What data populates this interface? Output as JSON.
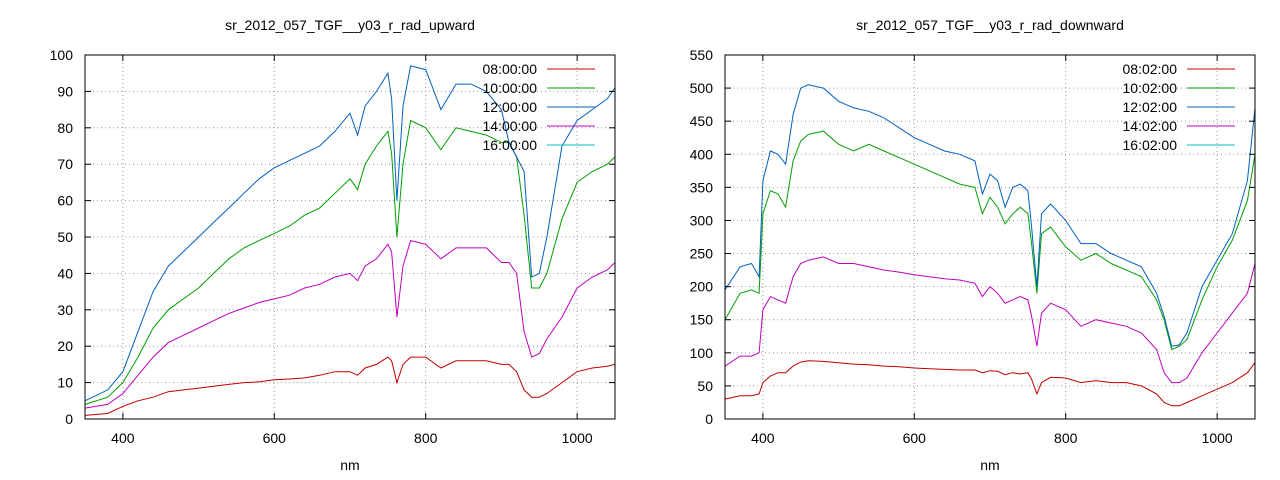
{
  "chart_data": [
    {
      "type": "line",
      "title": "sr_2012_057_TGF__y03_r_rad_upward",
      "xlabel": "nm",
      "ylabel": "",
      "xlim": [
        350,
        1050
      ],
      "ylim": [
        0,
        100
      ],
      "xticks": [
        400,
        600,
        800,
        1000
      ],
      "yticks": [
        0,
        10,
        20,
        30,
        40,
        50,
        60,
        70,
        80,
        90,
        100
      ],
      "grid": true,
      "legend_position": "top-right",
      "series": [
        {
          "name": "08:00:00",
          "color": "#c00000",
          "x": [
            350,
            380,
            400,
            420,
            440,
            460,
            480,
            500,
            520,
            540,
            560,
            580,
            600,
            620,
            640,
            660,
            680,
            700,
            710,
            720,
            735,
            750,
            755,
            762,
            770,
            780,
            800,
            820,
            840,
            860,
            880,
            900,
            910,
            920,
            930,
            940,
            950,
            960,
            980,
            1000,
            1020,
            1040,
            1050
          ],
          "y": [
            1,
            1.5,
            3.5,
            5,
            6,
            7.5,
            8,
            8.5,
            9,
            9.5,
            10,
            10.2,
            10.8,
            11,
            11.3,
            12,
            13,
            13,
            12,
            14,
            15,
            17,
            16,
            10,
            15,
            17,
            17,
            14,
            16,
            16,
            16,
            15,
            15,
            13,
            8,
            6,
            6,
            7,
            10,
            13,
            14,
            14.5,
            15
          ]
        },
        {
          "name": "10:00:00",
          "color": "#00a000",
          "x": [
            350,
            380,
            400,
            420,
            440,
            460,
            480,
            500,
            520,
            540,
            560,
            580,
            600,
            620,
            640,
            660,
            680,
            700,
            710,
            720,
            735,
            750,
            755,
            762,
            770,
            780,
            800,
            820,
            840,
            860,
            880,
            900,
            910,
            920,
            930,
            940,
            950,
            960,
            980,
            1000,
            1020,
            1040,
            1050
          ],
          "y": [
            4,
            6,
            10,
            17,
            25,
            30,
            33,
            36,
            40,
            44,
            47,
            49,
            51,
            53,
            56,
            58,
            62,
            66,
            63,
            70,
            75,
            79,
            73,
            50,
            70,
            82,
            80,
            74,
            80,
            79,
            78,
            76,
            76,
            72,
            56,
            36,
            36,
            40,
            55,
            65,
            68,
            70,
            72
          ]
        },
        {
          "name": "12:00:00",
          "color": "#0060c0",
          "x": [
            350,
            380,
            400,
            420,
            440,
            460,
            480,
            500,
            520,
            540,
            560,
            580,
            600,
            620,
            640,
            660,
            680,
            700,
            710,
            720,
            735,
            750,
            755,
            762,
            770,
            780,
            800,
            820,
            840,
            860,
            880,
            900,
            910,
            920,
            930,
            940,
            950,
            960,
            980,
            1000,
            1020,
            1040,
            1050
          ],
          "y": [
            5,
            8,
            13,
            24,
            35,
            42,
            46,
            50,
            54,
            58,
            62,
            66,
            69,
            71,
            73,
            75,
            79,
            84,
            78,
            86,
            90,
            95,
            88,
            60,
            86,
            97,
            96,
            85,
            92,
            92,
            90,
            85,
            76,
            72,
            68,
            39,
            40,
            50,
            75,
            82,
            85,
            88,
            91
          ]
        },
        {
          "name": "14:00:00",
          "color": "#c000c0",
          "x": [
            350,
            380,
            400,
            420,
            440,
            460,
            480,
            500,
            520,
            540,
            560,
            580,
            600,
            620,
            640,
            660,
            680,
            700,
            710,
            720,
            735,
            750,
            755,
            762,
            770,
            780,
            800,
            820,
            840,
            860,
            880,
            900,
            910,
            920,
            930,
            940,
            950,
            960,
            980,
            1000,
            1020,
            1040,
            1050
          ],
          "y": [
            3,
            4,
            7,
            12,
            17,
            21,
            23,
            25,
            27,
            29,
            30.5,
            32,
            33,
            34,
            36,
            37,
            39,
            40,
            38,
            42,
            44,
            48,
            46,
            28,
            42,
            49,
            48,
            44,
            47,
            47,
            47,
            43,
            43,
            40,
            24,
            17,
            18,
            22,
            28,
            36,
            39,
            41,
            43
          ]
        },
        {
          "name": "16:00:00",
          "color": "#00c0c0",
          "x": [
            350,
            1050
          ],
          "y": [
            0,
            0
          ]
        }
      ]
    },
    {
      "type": "line",
      "title": "sr_2012_057_TGF__y03_r_rad_downward",
      "xlabel": "nm",
      "ylabel": "",
      "xlim": [
        350,
        1050
      ],
      "ylim": [
        0,
        550
      ],
      "xticks": [
        400,
        600,
        800,
        1000
      ],
      "yticks": [
        0,
        50,
        100,
        150,
        200,
        250,
        300,
        350,
        400,
        450,
        500,
        550
      ],
      "grid": true,
      "legend_position": "top-right",
      "series": [
        {
          "name": "08:02:00",
          "color": "#c00000",
          "x": [
            350,
            370,
            385,
            395,
            400,
            410,
            420,
            430,
            440,
            450,
            460,
            480,
            500,
            520,
            540,
            560,
            580,
            600,
            620,
            640,
            660,
            680,
            690,
            700,
            710,
            720,
            730,
            740,
            750,
            755,
            762,
            768,
            780,
            800,
            820,
            840,
            860,
            880,
            900,
            920,
            930,
            940,
            950,
            960,
            980,
            1000,
            1020,
            1040,
            1050
          ],
          "y": [
            30,
            35,
            35,
            38,
            55,
            65,
            70,
            70,
            80,
            86,
            88,
            87,
            85,
            83,
            82,
            80,
            79,
            77,
            76,
            75,
            74,
            74,
            70,
            73,
            72,
            67,
            70,
            68,
            70,
            60,
            38,
            55,
            63,
            62,
            55,
            58,
            55,
            55,
            50,
            38,
            25,
            20,
            20,
            25,
            35,
            45,
            55,
            70,
            85
          ]
        },
        {
          "name": "10:02:00",
          "color": "#00a000",
          "x": [
            350,
            370,
            385,
            395,
            400,
            410,
            420,
            430,
            440,
            450,
            460,
            480,
            500,
            520,
            540,
            560,
            580,
            600,
            620,
            640,
            660,
            680,
            690,
            700,
            710,
            720,
            730,
            740,
            750,
            755,
            762,
            768,
            780,
            800,
            820,
            840,
            860,
            880,
            900,
            920,
            930,
            940,
            950,
            960,
            980,
            1000,
            1020,
            1040,
            1050
          ],
          "y": [
            150,
            190,
            195,
            190,
            310,
            345,
            340,
            320,
            390,
            420,
            430,
            435,
            415,
            405,
            415,
            405,
            395,
            385,
            375,
            365,
            355,
            350,
            310,
            335,
            320,
            295,
            310,
            320,
            310,
            265,
            190,
            280,
            290,
            260,
            240,
            250,
            235,
            225,
            215,
            180,
            150,
            105,
            110,
            120,
            180,
            230,
            270,
            330,
            400
          ]
        },
        {
          "name": "12:02:00",
          "color": "#0060c0",
          "x": [
            350,
            370,
            385,
            395,
            400,
            410,
            420,
            430,
            440,
            450,
            460,
            480,
            500,
            520,
            540,
            560,
            580,
            600,
            620,
            640,
            660,
            680,
            690,
            700,
            710,
            720,
            730,
            740,
            750,
            755,
            762,
            768,
            780,
            800,
            820,
            840,
            860,
            880,
            900,
            920,
            930,
            940,
            950,
            960,
            980,
            1000,
            1020,
            1040,
            1050
          ],
          "y": [
            195,
            230,
            235,
            215,
            360,
            405,
            400,
            385,
            460,
            500,
            505,
            500,
            480,
            470,
            465,
            455,
            440,
            425,
            415,
            405,
            400,
            390,
            340,
            370,
            360,
            320,
            350,
            355,
            345,
            290,
            200,
            310,
            325,
            300,
            265,
            265,
            250,
            240,
            230,
            190,
            155,
            110,
            112,
            130,
            200,
            240,
            280,
            360,
            470
          ]
        },
        {
          "name": "14:02:00",
          "color": "#c000c0",
          "x": [
            350,
            370,
            385,
            395,
            400,
            410,
            420,
            430,
            440,
            450,
            460,
            480,
            500,
            520,
            540,
            560,
            580,
            600,
            620,
            640,
            660,
            680,
            690,
            700,
            710,
            720,
            730,
            740,
            750,
            755,
            762,
            768,
            780,
            800,
            820,
            840,
            860,
            880,
            900,
            920,
            930,
            940,
            950,
            960,
            980,
            1000,
            1020,
            1040,
            1050
          ],
          "y": [
            80,
            95,
            95,
            100,
            165,
            185,
            180,
            175,
            215,
            235,
            240,
            245,
            235,
            235,
            230,
            225,
            222,
            218,
            215,
            212,
            210,
            205,
            185,
            200,
            190,
            175,
            180,
            185,
            180,
            155,
            110,
            160,
            175,
            165,
            140,
            150,
            145,
            140,
            130,
            105,
            70,
            55,
            55,
            62,
            100,
            130,
            160,
            190,
            235
          ]
        },
        {
          "name": "16:02:00",
          "color": "#00c0c0",
          "x": [
            350,
            1050
          ],
          "y": [
            0,
            0
          ]
        }
      ]
    }
  ]
}
